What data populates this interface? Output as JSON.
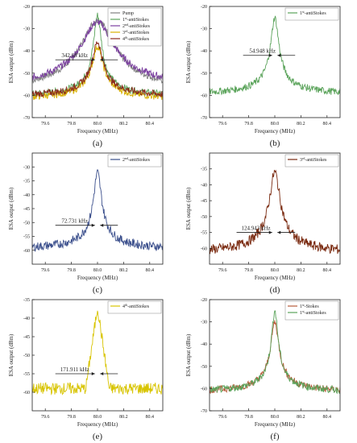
{
  "figure": {
    "x_label": "Frequency (MHz)",
    "y_label": "ESA output (dBm)",
    "x_ticks": [
      "79.6",
      "79.8",
      "80.0",
      "80.2",
      "80.4"
    ]
  },
  "chart_data": [
    {
      "type": "line",
      "panel_label": "(a)",
      "xlim": [
        79.5,
        80.5
      ],
      "ylim": [
        -70,
        -20
      ],
      "y_ticks": [
        -20,
        -30,
        -40,
        -50,
        -60,
        -70
      ],
      "legend_position": "top-right",
      "series": [
        {
          "name": "Pump",
          "sup": "",
          "suffix": "",
          "color": "#808080",
          "peak": -26,
          "floor": -60,
          "hw": 0.12,
          "shape": "lorentz"
        },
        {
          "name": "1",
          "sup": "st",
          "suffix": "-antiStokes",
          "color": "#5aa35a",
          "peak": -24,
          "floor": -61,
          "hw": 0.03,
          "shape": "lorentz"
        },
        {
          "name": "2",
          "sup": "nd",
          "suffix": "-antiStokes",
          "color": "#7b3fa0",
          "peak": -27,
          "floor": -58,
          "hw": 0.12,
          "shape": "lorentz"
        },
        {
          "name": "3",
          "sup": "rd",
          "suffix": "-antiStokes",
          "color": "#d8b000",
          "peak": -38,
          "floor": -62,
          "hw": 0.04,
          "shape": "lorentz"
        },
        {
          "name": "4",
          "sup": "th",
          "suffix": "-antiStokes",
          "color": "#8b2a1f",
          "peak": -36,
          "floor": -61,
          "hw": 0.04,
          "shape": "lorentz"
        }
      ],
      "annotation": {
        "text": "342.68 kHz",
        "x": 79.85,
        "y": -44
      }
    },
    {
      "type": "line",
      "panel_label": "(b)",
      "xlim": [
        79.5,
        80.5
      ],
      "ylim": [
        -70,
        -20
      ],
      "y_ticks": [
        -20,
        -30,
        -40,
        -50,
        -60,
        -70
      ],
      "legend_position": "top-right",
      "series": [
        {
          "name": "1",
          "sup": "st",
          "suffix": "-antiStokes",
          "color": "#5aa35a",
          "peak": -25,
          "floor": -60,
          "hw": 0.03,
          "shape": "lorentz"
        }
      ],
      "annotation": {
        "text": "54.948 kHz",
        "x": 79.93,
        "y": -42
      }
    },
    {
      "type": "line",
      "panel_label": "(c)",
      "xlim": [
        79.5,
        80.5
      ],
      "ylim": [
        -65,
        -25
      ],
      "y_ticks": [
        -30,
        -35,
        -40,
        -45,
        -50,
        -55,
        -60
      ],
      "legend_position": "top-right",
      "series": [
        {
          "name": "2",
          "sup": "nd",
          "suffix": "-antiStokes",
          "color": "#3b4f8c",
          "peak": -32,
          "floor": -60,
          "hw": 0.03,
          "shape": "lorentz"
        }
      ],
      "annotation": {
        "text": "72.731 kHz",
        "x": 79.85,
        "y": -51
      }
    },
    {
      "type": "line",
      "panel_label": "(d)",
      "xlim": [
        79.5,
        80.5
      ],
      "ylim": [
        -65,
        -30
      ],
      "y_ticks": [
        -35,
        -40,
        -45,
        -50,
        -55,
        -60
      ],
      "legend_position": "top-right",
      "series": [
        {
          "name": "3",
          "sup": "rd",
          "suffix": "-antiStokes",
          "color": "#7a2a10",
          "peak": -36,
          "floor": -62,
          "hw": 0.04,
          "shape": "lorentz"
        }
      ],
      "annotation": {
        "text": "124.943 kHz",
        "x": 79.88,
        "y": -55
      }
    },
    {
      "type": "line",
      "panel_label": "(e)",
      "xlim": [
        79.5,
        80.5
      ],
      "ylim": [
        -65,
        -35
      ],
      "y_ticks": [
        -35,
        -40,
        -45,
        -50,
        -55,
        -60
      ],
      "legend_position": "top-right",
      "series": [
        {
          "name": "4",
          "sup": "th",
          "suffix": "-antiStokes",
          "color": "#d8c400",
          "peak": -37,
          "floor": -59,
          "hw": 0.09,
          "shape": "tri"
        }
      ],
      "annotation": {
        "text": "171.911 kHz",
        "x": 79.85,
        "y": -55
      }
    },
    {
      "type": "line",
      "panel_label": "(f)",
      "xlim": [
        79.5,
        80.5
      ],
      "ylim": [
        -70,
        -20
      ],
      "y_ticks": [
        -20,
        -30,
        -40,
        -50,
        -60,
        -70
      ],
      "legend_position": "top-right",
      "series": [
        {
          "name": "1",
          "sup": "st",
          "suffix": "-Stokes",
          "color": "#b85a3a",
          "peak": -30,
          "floor": -62,
          "hw": 0.03,
          "shape": "lorentz"
        },
        {
          "name": "1",
          "sup": "st",
          "suffix": "-antiStokes",
          "color": "#5aa35a",
          "peak": -25,
          "floor": -62,
          "hw": 0.025,
          "shape": "lorentz"
        }
      ]
    }
  ]
}
